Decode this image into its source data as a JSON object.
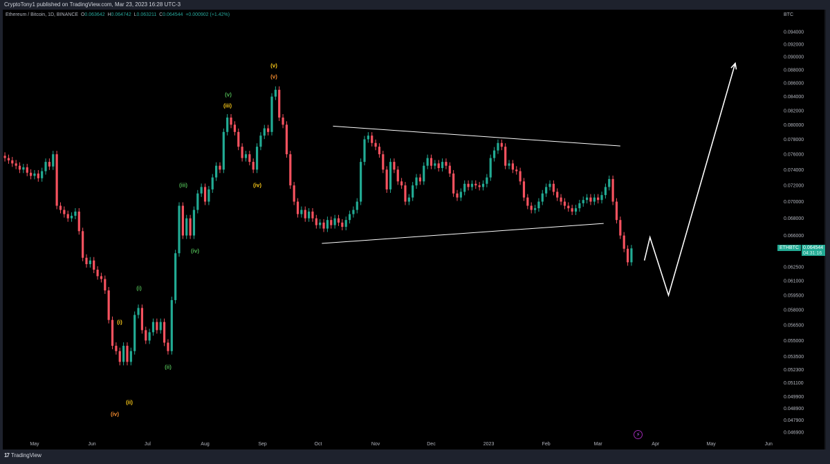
{
  "publish_line": "CryptoTony1 published on TradingView.com, Mar 23, 2023 16:28 UTC-3",
  "legend": {
    "symbol": "Ethereum / Bitcoin, 1D, BINANCE",
    "o_label": "O",
    "o": "0.063642",
    "h_label": "H",
    "h": "0.064742",
    "l_label": "L",
    "l": "0.063211",
    "c_label": "C",
    "c": "0.064544",
    "change": "+0.000902 (+1.42%)"
  },
  "price_tag": {
    "symbol": "ETHBTC",
    "price": "0.064544",
    "countdown": "04:31:16"
  },
  "footer": {
    "brand": "TradingView"
  },
  "colors": {
    "up": "#22ab94",
    "down": "#f7525f",
    "background": "#000000",
    "frame": "#1e222d",
    "yellow": "#f5c518",
    "orange": "#f0892e",
    "green": "#4caf50",
    "drawing": "#ffffff",
    "event_icon": "#9c27b0"
  },
  "icons": {
    "event": "lightning-icon",
    "logo": "tradingview-logo-icon"
  },
  "waves": [
    {
      "text": "(i)",
      "color": "yellow"
    },
    {
      "text": "(iv)",
      "color": "orange"
    },
    {
      "text": "(ii)",
      "color": "yellow"
    },
    {
      "text": "(i)",
      "color": "green"
    },
    {
      "text": "(ii)",
      "color": "green"
    },
    {
      "text": "(iii)",
      "color": "green"
    },
    {
      "text": "(iv)",
      "color": "green"
    },
    {
      "text": "(v)",
      "color": "green"
    },
    {
      "text": "(iii)",
      "color": "yellow"
    },
    {
      "text": "(iv)",
      "color": "yellow"
    },
    {
      "text": "(v)",
      "color": "yellow"
    },
    {
      "text": "(v)",
      "color": "orange"
    }
  ],
  "chart_data": {
    "type": "candlestick",
    "scale": "log",
    "currency_label": "BTC",
    "y_ticks": [
      "0.094000",
      "0.092000",
      "0.090000",
      "0.088000",
      "0.086000",
      "0.084000",
      "0.082000",
      "0.080000",
      "0.078000",
      "0.076000",
      "0.074000",
      "0.072000",
      "0.070000",
      "0.068000",
      "0.066000",
      "0.062500",
      "0.061000",
      "0.059500",
      "0.058000",
      "0.056500",
      "0.055000",
      "0.053500",
      "0.052300",
      "0.051100",
      "0.049900",
      "0.048900",
      "0.047900",
      "0.046900"
    ],
    "x_ticks": [
      {
        "label": "May",
        "date": "2022-05-01"
      },
      {
        "label": "Jun",
        "date": "2022-06-01"
      },
      {
        "label": "Jul",
        "date": "2022-07-01"
      },
      {
        "label": "Aug",
        "date": "2022-08-01"
      },
      {
        "label": "Sep",
        "date": "2022-09-01"
      },
      {
        "label": "Oct",
        "date": "2022-10-01"
      },
      {
        "label": "Nov",
        "date": "2022-11-01"
      },
      {
        "label": "Dec",
        "date": "2022-12-01"
      },
      {
        "label": "2023",
        "date": "2023-01-01"
      },
      {
        "label": "Feb",
        "date": "2023-02-01"
      },
      {
        "label": "Mar",
        "date": "2023-03-01"
      },
      {
        "label": "Apr",
        "date": "2023-04-01"
      },
      {
        "label": "May",
        "date": "2023-05-01"
      },
      {
        "label": "Jun",
        "date": "2023-06-01"
      }
    ],
    "closes": [
      0.0755,
      0.0752,
      0.0748,
      0.0745,
      0.074,
      0.0743,
      0.0736,
      0.0732,
      0.0735,
      0.0729,
      0.0738,
      0.075,
      0.0744,
      0.076,
      0.0695,
      0.069,
      0.0685,
      0.068,
      0.0683,
      0.0688,
      0.0665,
      0.0635,
      0.0628,
      0.0632,
      0.0622,
      0.0615,
      0.0612,
      0.06,
      0.057,
      0.0545,
      0.054,
      0.053,
      0.0545,
      0.053,
      0.054,
      0.0575,
      0.0582,
      0.056,
      0.055,
      0.0558,
      0.0568,
      0.056,
      0.0568,
      0.0548,
      0.054,
      0.059,
      0.064,
      0.0695,
      0.066,
      0.068,
      0.066,
      0.069,
      0.071,
      0.0718,
      0.07,
      0.0715,
      0.073,
      0.0745,
      0.074,
      0.079,
      0.081,
      0.08,
      0.079,
      0.077,
      0.0755,
      0.076,
      0.075,
      0.074,
      0.077,
      0.0785,
      0.0795,
      0.079,
      0.084,
      0.085,
      0.081,
      0.08,
      0.076,
      0.072,
      0.07,
      0.0685,
      0.069,
      0.068,
      0.0688,
      0.068,
      0.0672,
      0.0675,
      0.0668,
      0.0678,
      0.0672,
      0.068,
      0.0675,
      0.067,
      0.0678,
      0.0685,
      0.069,
      0.07,
      0.075,
      0.078,
      0.0785,
      0.0775,
      0.077,
      0.076,
      0.074,
      0.0715,
      0.075,
      0.074,
      0.0725,
      0.072,
      0.07,
      0.0705,
      0.072,
      0.073,
      0.0725,
      0.0745,
      0.0755,
      0.0745,
      0.0748,
      0.0742,
      0.075,
      0.0745,
      0.0735,
      0.071,
      0.0705,
      0.0712,
      0.0722,
      0.0718,
      0.0722,
      0.072,
      0.0718,
      0.0722,
      0.073,
      0.0755,
      0.0765,
      0.0775,
      0.077,
      0.0745,
      0.0748,
      0.074,
      0.0738,
      0.0725,
      0.0705,
      0.0695,
      0.069,
      0.0692,
      0.07,
      0.071,
      0.0718,
      0.0722,
      0.0712,
      0.0705,
      0.07,
      0.0695,
      0.0692,
      0.0688,
      0.0692,
      0.0698,
      0.0702,
      0.0705,
      0.07,
      0.0705,
      0.0702,
      0.0708,
      0.0718,
      0.0728,
      0.07,
      0.0678,
      0.066,
      0.0645,
      0.063,
      0.064544
    ],
    "first_open": 0.0758,
    "trendlines": [
      {
        "name": "triangle-upper",
        "from": {
          "date": "2022-10-09",
          "price": 0.0798
        },
        "to": {
          "date": "2023-03-13",
          "price": 0.0771
        }
      },
      {
        "name": "triangle-lower",
        "from": {
          "date": "2022-10-03",
          "price": 0.0651
        },
        "to": {
          "date": "2023-03-04",
          "price": 0.0674
        }
      }
    ],
    "projection": [
      {
        "date": "2023-03-26",
        "price": 0.0632
      },
      {
        "date": "2023-03-29",
        "price": 0.0658
      },
      {
        "date": "2023-04-08",
        "price": 0.0595
      },
      {
        "date": "2023-05-14",
        "price": 0.089
      }
    ]
  }
}
